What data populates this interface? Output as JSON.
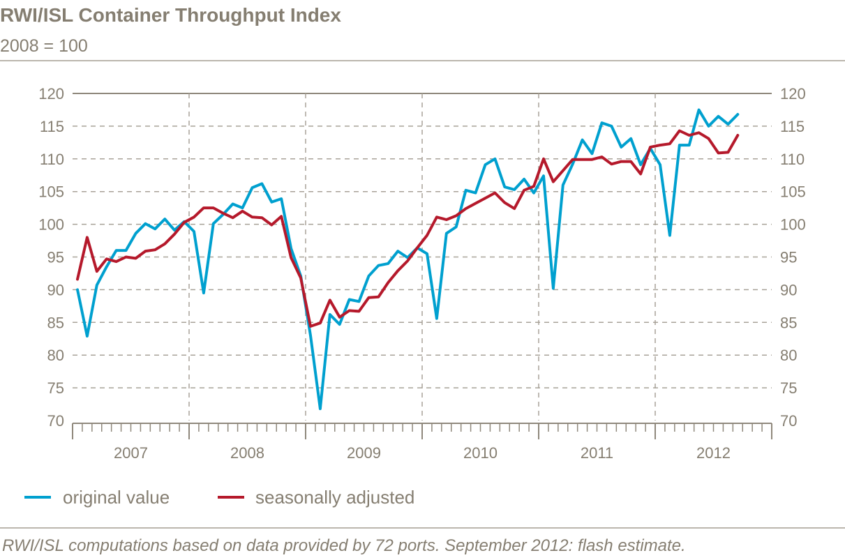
{
  "header": {
    "title": "RWI/ISL Container Throughput Index",
    "subtitle": "2008 = 100"
  },
  "footer": {
    "note": "RWI/ISL computations based on data provided by 72 ports. September 2012: flash estimate."
  },
  "colors": {
    "text": "#857e71",
    "original_value": "#00a0cf",
    "seasonally_adjusted": "#b5192b",
    "grid": "#a8a298"
  },
  "chart_data": {
    "type": "line",
    "title": "RWI/ISL Container Throughput Index",
    "subtitle": "2008 = 100",
    "xlabel": "",
    "ylabel": "",
    "x_range": [
      "2007-01",
      "2012-12"
    ],
    "x_tick_labels": [
      "2007",
      "2008",
      "2009",
      "2010",
      "2011",
      "2012"
    ],
    "ylim": [
      70,
      120
    ],
    "y_ticks": [
      70,
      75,
      80,
      85,
      90,
      95,
      100,
      105,
      110,
      115,
      120
    ],
    "y_axis_sides": "left-and-right",
    "grid": "dashed horizontal and yearly vertical",
    "legend_position": "bottom-left",
    "x": [
      "2007-01",
      "2007-02",
      "2007-03",
      "2007-04",
      "2007-05",
      "2007-06",
      "2007-07",
      "2007-08",
      "2007-09",
      "2007-10",
      "2007-11",
      "2007-12",
      "2008-01",
      "2008-02",
      "2008-03",
      "2008-04",
      "2008-05",
      "2008-06",
      "2008-07",
      "2008-08",
      "2008-09",
      "2008-10",
      "2008-11",
      "2008-12",
      "2009-01",
      "2009-02",
      "2009-03",
      "2009-04",
      "2009-05",
      "2009-06",
      "2009-07",
      "2009-08",
      "2009-09",
      "2009-10",
      "2009-11",
      "2009-12",
      "2010-01",
      "2010-02",
      "2010-03",
      "2010-04",
      "2010-05",
      "2010-06",
      "2010-07",
      "2010-08",
      "2010-09",
      "2010-10",
      "2010-11",
      "2010-12",
      "2011-01",
      "2011-02",
      "2011-03",
      "2011-04",
      "2011-05",
      "2011-06",
      "2011-07",
      "2011-08",
      "2011-09",
      "2011-10",
      "2011-11",
      "2011-12",
      "2012-01",
      "2012-02",
      "2012-03",
      "2012-04",
      "2012-05",
      "2012-06",
      "2012-07",
      "2012-08",
      "2012-09"
    ],
    "series": [
      {
        "name": "original value",
        "color": "#00a0cf",
        "values": [
          90.0,
          82.9,
          90.7,
          93.5,
          96.0,
          96.0,
          98.6,
          100.1,
          99.3,
          100.8,
          99.1,
          100.4,
          98.9,
          89.5,
          100.1,
          101.5,
          103.1,
          102.5,
          105.6,
          106.2,
          103.4,
          103.9,
          96.3,
          92.1,
          83.0,
          71.8,
          86.2,
          84.7,
          88.5,
          88.2,
          92.1,
          93.7,
          94.0,
          95.9,
          94.9,
          96.4,
          95.5,
          85.6,
          98.6,
          99.6,
          105.2,
          104.8,
          109.1,
          110.0,
          105.7,
          105.3,
          106.9,
          104.8,
          107.4,
          90.2,
          106.0,
          109.2,
          112.9,
          110.8,
          115.5,
          115.0,
          111.8,
          113.1,
          109.1,
          111.6,
          109.1,
          98.3,
          112.1,
          112.1,
          117.5,
          115.0,
          116.5,
          115.3,
          116.8
        ]
      },
      {
        "name": "seasonally adjusted",
        "color": "#b5192b",
        "values": [
          91.6,
          98.0,
          92.8,
          94.7,
          94.3,
          95.0,
          94.8,
          95.9,
          96.1,
          97.0,
          98.5,
          100.3,
          101.1,
          102.5,
          102.5,
          101.7,
          101.0,
          102.0,
          101.1,
          101.0,
          99.9,
          101.2,
          94.9,
          91.8,
          84.4,
          84.9,
          88.4,
          85.8,
          86.8,
          86.7,
          88.8,
          88.9,
          91.1,
          92.9,
          94.4,
          96.4,
          98.3,
          101.1,
          100.7,
          101.3,
          102.4,
          103.2,
          104.0,
          104.8,
          103.3,
          102.4,
          105.2,
          105.8,
          110.0,
          106.5,
          108.2,
          109.9,
          109.9,
          109.9,
          110.3,
          109.2,
          109.6,
          109.6,
          107.7,
          111.8,
          112.1,
          112.3,
          114.3,
          113.6,
          114.0,
          113.1,
          110.9,
          111.0,
          113.6
        ]
      }
    ]
  }
}
